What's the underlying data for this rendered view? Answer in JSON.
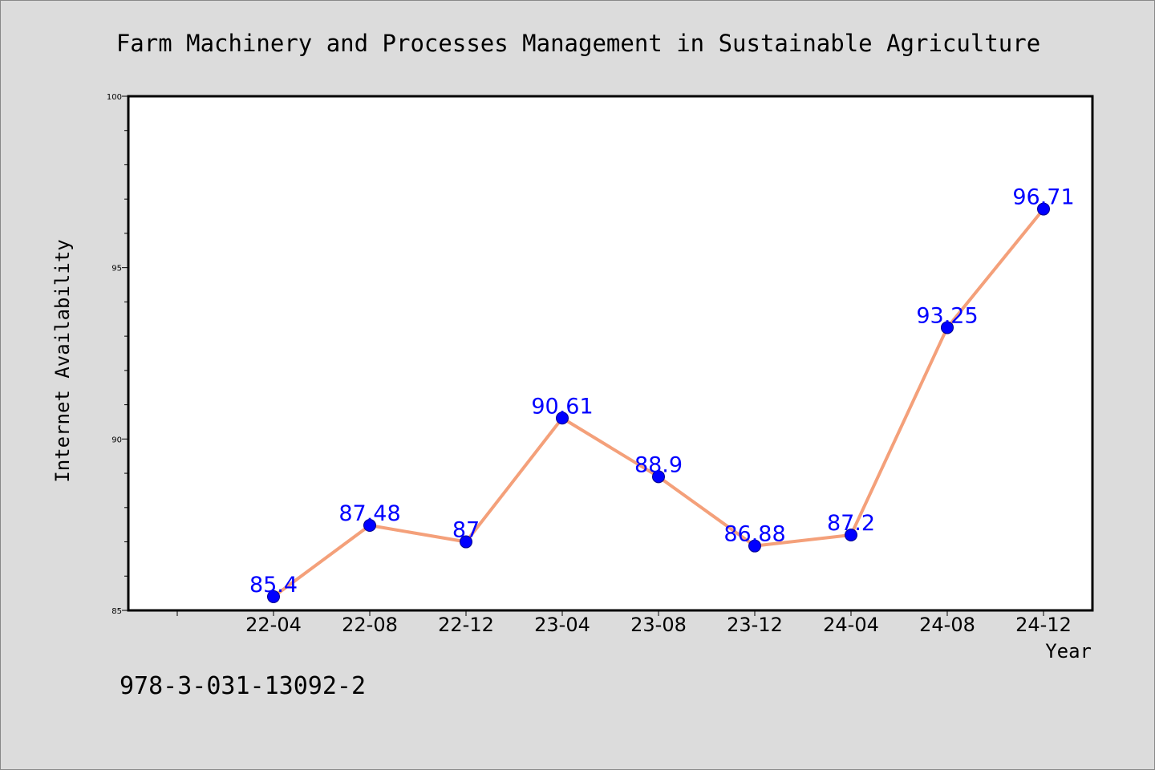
{
  "chart_data": {
    "type": "line",
    "title": "Farm Machinery and Processes Management in Sustainable Agriculture",
    "xlabel": "Year",
    "ylabel": "Internet Availability",
    "categories": [
      "22-04",
      "22-08",
      "22-12",
      "23-04",
      "23-08",
      "23-12",
      "24-04",
      "24-08",
      "24-12"
    ],
    "series": [
      {
        "values": [
          85.4,
          87.48,
          87,
          90.61,
          88.9,
          86.88,
          87.2,
          93.25,
          96.71
        ],
        "labels": [
          "85.4",
          "87.48",
          "87",
          "90.61",
          "88.9",
          "86.88",
          "87.2",
          "93.25",
          "96.71"
        ]
      }
    ],
    "ylim": [
      85,
      100
    ],
    "yticks": [
      "85",
      "90",
      "95",
      "100"
    ],
    "grid": false,
    "legend": "none",
    "colors": {
      "line": "#f4a07a",
      "marker": "#0000ff",
      "label": "#0000ff",
      "background": "#dcdcdc",
      "plot_background": "#ffffff"
    }
  },
  "footer_text": "978-3-031-13092-2"
}
